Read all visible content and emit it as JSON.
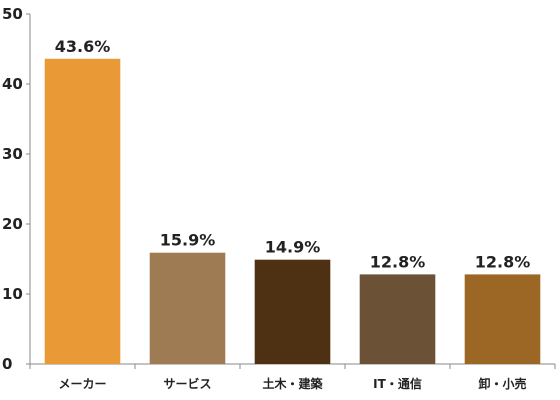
{
  "chart_data": {
    "type": "bar",
    "title": "",
    "xlabel": "",
    "ylabel": "",
    "ylim": [
      0,
      50
    ],
    "yticks": [
      0,
      10,
      20,
      30,
      40,
      50
    ],
    "grid": false,
    "categories": [
      "メーカー",
      "サービス",
      "土木・建築",
      "IT・通信",
      "卸・小売"
    ],
    "values": [
      43.6,
      15.9,
      14.9,
      12.8,
      12.8
    ],
    "data_labels": [
      "43.6%",
      "15.9%",
      "14.9%",
      "12.8%",
      "12.8%"
    ],
    "colors": [
      "#E99A36",
      "#9E7B52",
      "#4E3112",
      "#6B5135",
      "#9C6624"
    ]
  }
}
